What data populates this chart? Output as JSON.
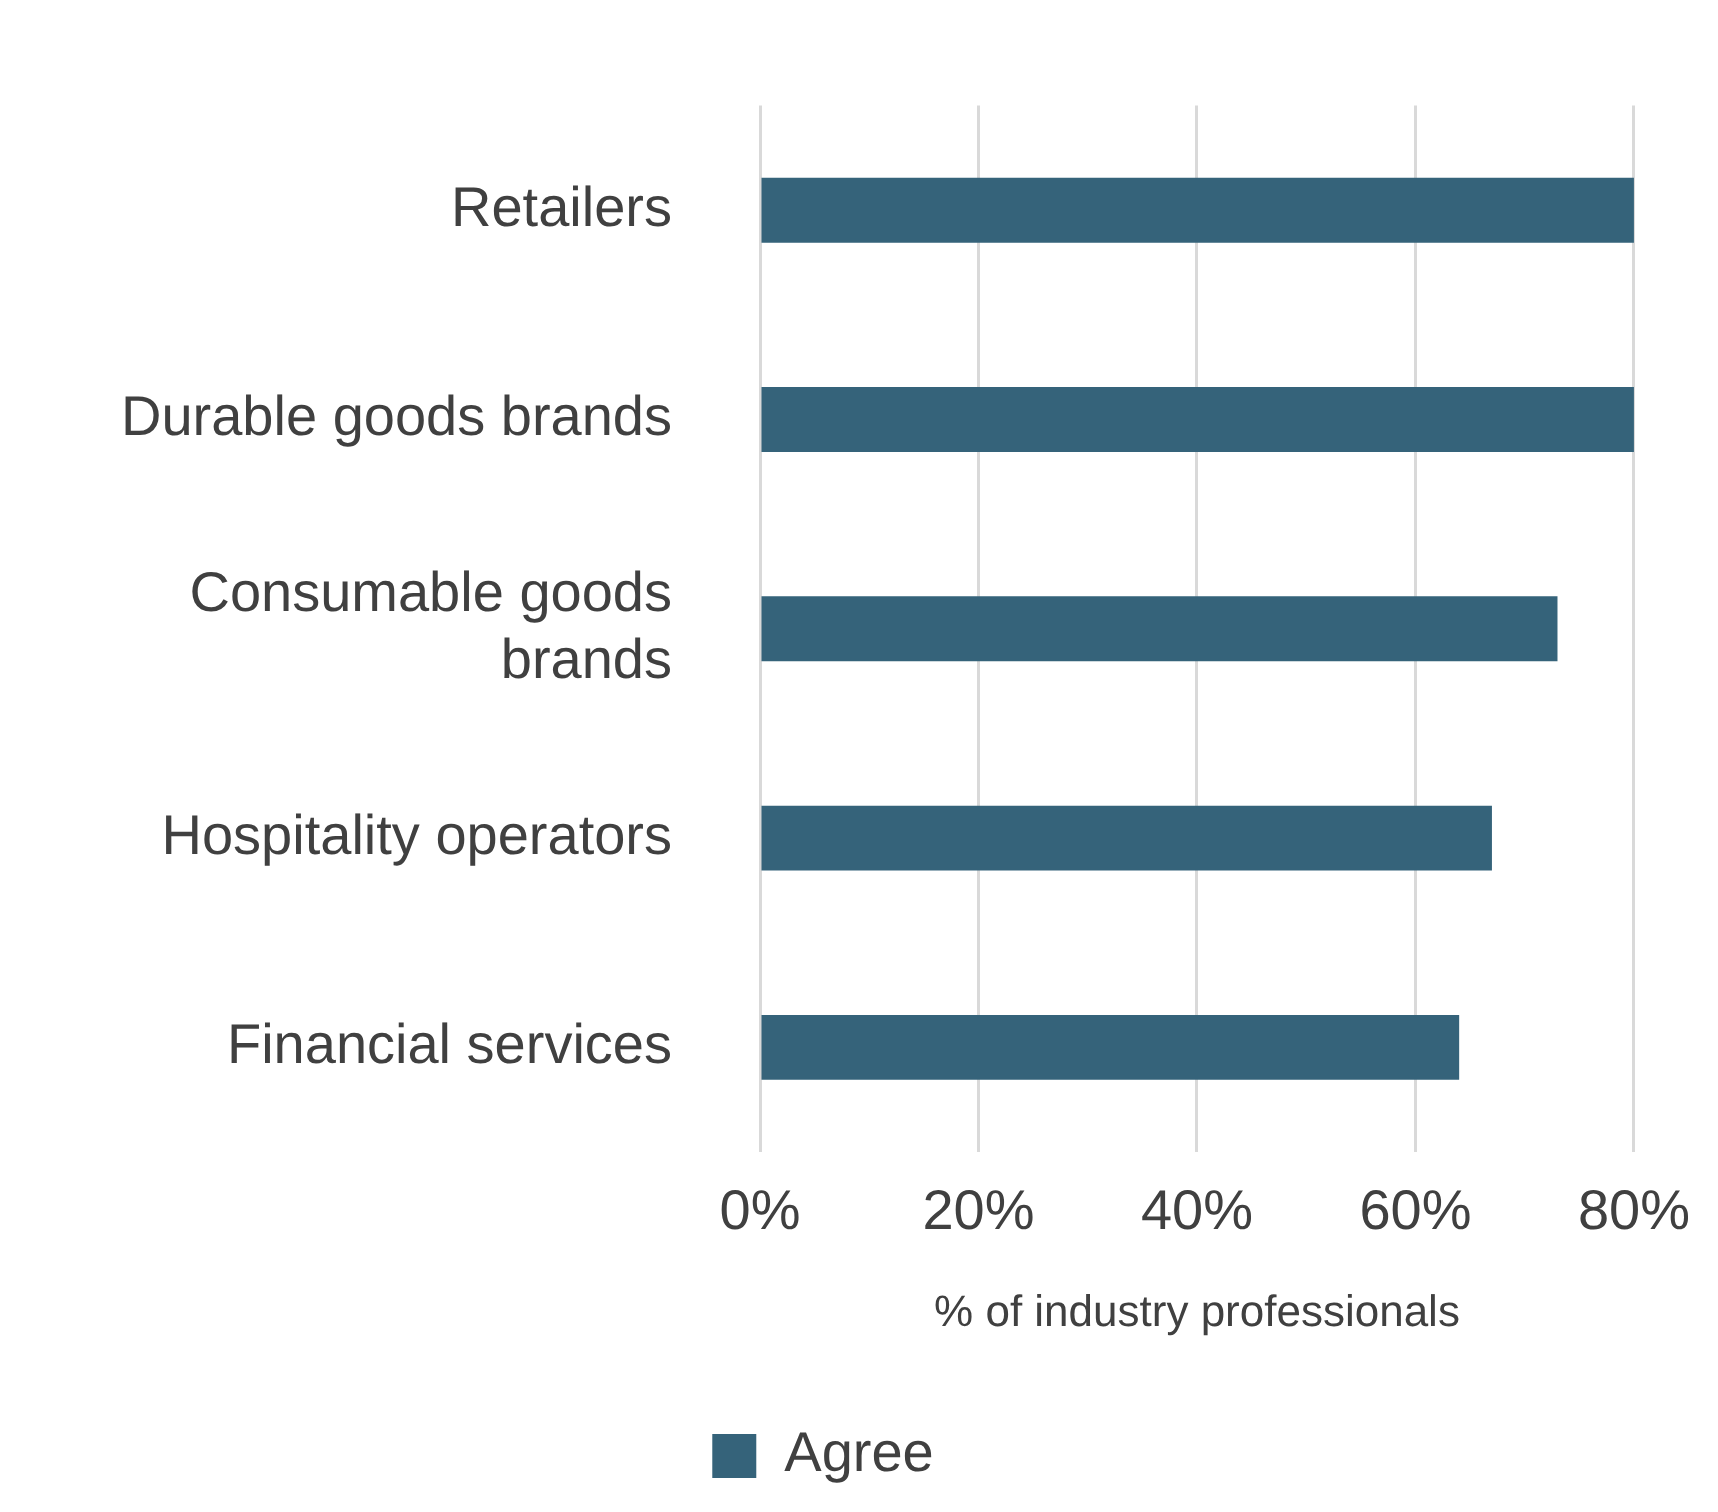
{
  "chart_data": {
    "type": "bar",
    "orientation": "horizontal",
    "categories": [
      "Retailers",
      "Durable goods brands",
      "Consumable goods\nbrands",
      "Hospitality operators",
      "Financial services"
    ],
    "series": [
      {
        "name": "Agree",
        "color": "#35637a",
        "values": [
          80,
          80,
          73,
          67,
          64
        ]
      }
    ],
    "xlim": [
      0,
      80
    ],
    "xticks": [
      {
        "value": 0,
        "label": "0%"
      },
      {
        "value": 20,
        "label": "20%"
      },
      {
        "value": 40,
        "label": "40%"
      },
      {
        "value": 60,
        "label": "60%"
      },
      {
        "value": 80,
        "label": "80%"
      }
    ],
    "xlabel": "% of industry professionals",
    "grid": "x",
    "legend": "bottom"
  }
}
